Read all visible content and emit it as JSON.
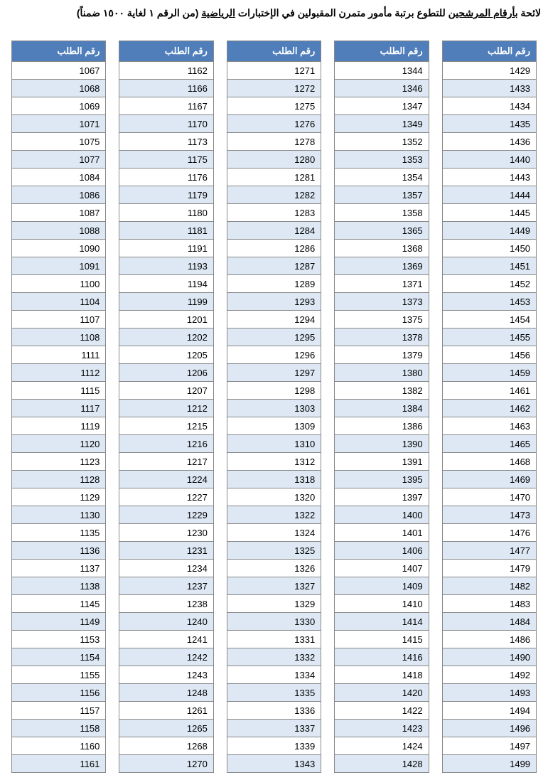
{
  "title_prefix": "لائحة ",
  "title_underlined": "بأرقام المرشحين",
  "title_mid": " للتطوع برتبة مأمور متمرن المقبولين في الإختبارات ",
  "title_underlined2": "الرياضية",
  "title_suffix": " (من الرقم ١ لغاية ١٥٠٠ ضمناً)",
  "header_label": "رقم الطلب",
  "header_bg": "#4f7eba",
  "header_fg": "#ffffff",
  "row_alt_bg": "#dde8f4",
  "row_bg": "#ffffff",
  "border_color": "#888888",
  "font_size": 13,
  "columns": [
    [
      1067,
      1068,
      1069,
      1071,
      1075,
      1077,
      1084,
      1086,
      1087,
      1088,
      1090,
      1091,
      1100,
      1104,
      1107,
      1108,
      1111,
      1112,
      1115,
      1117,
      1119,
      1120,
      1123,
      1128,
      1129,
      1130,
      1135,
      1136,
      1137,
      1138,
      1145,
      1149,
      1153,
      1154,
      1155,
      1156,
      1157,
      1158,
      1160,
      1161
    ],
    [
      1162,
      1166,
      1167,
      1170,
      1173,
      1175,
      1176,
      1179,
      1180,
      1181,
      1191,
      1193,
      1194,
      1199,
      1201,
      1202,
      1205,
      1206,
      1207,
      1212,
      1215,
      1216,
      1217,
      1224,
      1227,
      1229,
      1230,
      1231,
      1234,
      1237,
      1238,
      1240,
      1241,
      1242,
      1243,
      1248,
      1261,
      1265,
      1268,
      1270
    ],
    [
      1271,
      1272,
      1275,
      1276,
      1278,
      1280,
      1281,
      1282,
      1283,
      1284,
      1286,
      1287,
      1289,
      1293,
      1294,
      1295,
      1296,
      1297,
      1298,
      1303,
      1309,
      1310,
      1312,
      1318,
      1320,
      1322,
      1324,
      1325,
      1326,
      1327,
      1329,
      1330,
      1331,
      1332,
      1334,
      1335,
      1336,
      1337,
      1339,
      1343
    ],
    [
      1344,
      1346,
      1347,
      1349,
      1352,
      1353,
      1354,
      1357,
      1358,
      1365,
      1368,
      1369,
      1371,
      1373,
      1375,
      1378,
      1379,
      1380,
      1382,
      1384,
      1386,
      1390,
      1391,
      1395,
      1397,
      1400,
      1401,
      1406,
      1407,
      1409,
      1410,
      1414,
      1415,
      1416,
      1418,
      1420,
      1422,
      1423,
      1424,
      1428
    ],
    [
      1429,
      1433,
      1434,
      1435,
      1436,
      1440,
      1443,
      1444,
      1445,
      1449,
      1450,
      1451,
      1452,
      1453,
      1454,
      1455,
      1456,
      1459,
      1461,
      1462,
      1463,
      1465,
      1468,
      1469,
      1470,
      1473,
      1476,
      1477,
      1479,
      1482,
      1483,
      1484,
      1486,
      1490,
      1492,
      1493,
      1494,
      1496,
      1497,
      1499
    ]
  ]
}
